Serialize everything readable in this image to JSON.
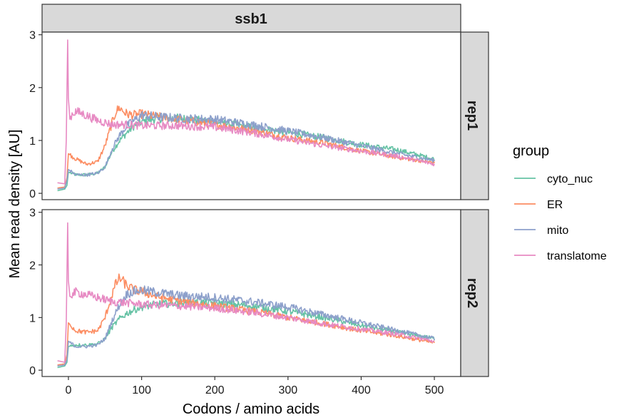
{
  "chart_data": {
    "type": "line",
    "xlabel": "Codons / amino acids",
    "ylabel": "Mean read density [AU]",
    "xlim": [
      -36,
      536
    ],
    "ylim": [
      -0.12,
      3.05
    ],
    "x_ticks": [
      0,
      100,
      200,
      300,
      400,
      500
    ],
    "y_ticks": [
      0,
      1,
      2,
      3
    ],
    "grid": false,
    "legend": {
      "title": "group",
      "position": "right",
      "entries": [
        "cyto_nuc",
        "ER",
        "mito",
        "translatome"
      ]
    },
    "facet_column": "ssb1",
    "facet_rows": [
      "rep1",
      "rep2"
    ],
    "colors": {
      "cyto_nuc": "#66c2a5",
      "ER": "#fc8d62",
      "mito": "#8da0cb",
      "translatome": "#e78ac3"
    },
    "panels": [
      {
        "row": "rep1",
        "series": [
          {
            "name": "cyto_nuc",
            "x": [
              -15,
              -5,
              -2,
              0,
              10,
              25,
              40,
              50,
              60,
              70,
              80,
              90,
              100,
              120,
              150,
              200,
              250,
              300,
              350,
              400,
              450,
              500
            ],
            "y": [
              0.05,
              0.08,
              0.15,
              0.4,
              0.35,
              0.35,
              0.38,
              0.5,
              0.8,
              1.0,
              1.15,
              1.28,
              1.35,
              1.42,
              1.42,
              1.35,
              1.25,
              1.15,
              1.05,
              0.92,
              0.82,
              0.65
            ]
          },
          {
            "name": "ER",
            "x": [
              -15,
              -5,
              -2,
              0,
              10,
              25,
              40,
              50,
              60,
              65,
              70,
              75,
              80,
              90,
              100,
              120,
              150,
              200,
              250,
              300,
              350,
              400,
              450,
              500
            ],
            "y": [
              0.1,
              0.12,
              0.3,
              0.75,
              0.65,
              0.55,
              0.6,
              0.9,
              1.35,
              1.55,
              1.62,
              1.55,
              1.5,
              1.48,
              1.5,
              1.45,
              1.4,
              1.3,
              1.2,
              1.05,
              0.95,
              0.8,
              0.68,
              0.58
            ]
          },
          {
            "name": "mito",
            "x": [
              -15,
              -5,
              -2,
              0,
              10,
              25,
              40,
              50,
              60,
              70,
              80,
              90,
              100,
              120,
              150,
              200,
              250,
              300,
              350,
              400,
              450,
              500
            ],
            "y": [
              0.08,
              0.1,
              0.25,
              0.45,
              0.35,
              0.35,
              0.38,
              0.5,
              0.85,
              1.1,
              1.28,
              1.38,
              1.48,
              1.45,
              1.42,
              1.4,
              1.3,
              1.18,
              1.05,
              0.9,
              0.75,
              0.62
            ]
          },
          {
            "name": "translatome",
            "x": [
              -15,
              -5,
              -3,
              -1,
              0,
              2,
              5,
              10,
              20,
              40,
              60,
              80,
              100,
              150,
              200,
              250,
              300,
              350,
              400,
              450,
              500
            ],
            "y": [
              0.2,
              0.18,
              1.0,
              2.9,
              1.8,
              1.4,
              1.5,
              1.55,
              1.5,
              1.38,
              1.3,
              1.3,
              1.28,
              1.28,
              1.25,
              1.15,
              1.02,
              0.9,
              0.8,
              0.7,
              0.55
            ]
          }
        ]
      },
      {
        "row": "rep2",
        "series": [
          {
            "name": "cyto_nuc",
            "x": [
              -15,
              -5,
              -2,
              0,
              10,
              25,
              40,
              50,
              60,
              70,
              80,
              90,
              100,
              120,
              150,
              200,
              250,
              300,
              350,
              400,
              450,
              500
            ],
            "y": [
              0.05,
              0.08,
              0.15,
              0.45,
              0.48,
              0.48,
              0.5,
              0.6,
              0.82,
              0.98,
              1.08,
              1.15,
              1.2,
              1.25,
              1.28,
              1.28,
              1.22,
              1.12,
              1.0,
              0.85,
              0.72,
              0.6
            ]
          },
          {
            "name": "ER",
            "x": [
              -15,
              -5,
              -2,
              0,
              10,
              25,
              40,
              50,
              60,
              65,
              70,
              75,
              80,
              90,
              100,
              120,
              150,
              200,
              250,
              300,
              350,
              400,
              450,
              500
            ],
            "y": [
              0.1,
              0.12,
              0.3,
              0.9,
              0.75,
              0.72,
              0.75,
              1.0,
              1.45,
              1.65,
              1.75,
              1.68,
              1.6,
              1.52,
              1.5,
              1.4,
              1.32,
              1.22,
              1.12,
              1.0,
              0.88,
              0.75,
              0.65,
              0.52
            ]
          },
          {
            "name": "mito",
            "x": [
              -15,
              -5,
              -2,
              0,
              10,
              25,
              40,
              50,
              60,
              70,
              80,
              90,
              100,
              120,
              150,
              200,
              250,
              300,
              350,
              400,
              450,
              500
            ],
            "y": [
              0.08,
              0.1,
              0.2,
              0.55,
              0.45,
              0.45,
              0.48,
              0.6,
              0.95,
              1.25,
              1.45,
              1.5,
              1.52,
              1.48,
              1.42,
              1.38,
              1.3,
              1.2,
              1.05,
              0.9,
              0.75,
              0.6
            ]
          },
          {
            "name": "translatome",
            "x": [
              -15,
              -5,
              -3,
              -1,
              0,
              2,
              5,
              10,
              20,
              40,
              60,
              80,
              100,
              150,
              200,
              250,
              300,
              350,
              400,
              450,
              500
            ],
            "y": [
              0.18,
              0.15,
              0.9,
              2.8,
              1.7,
              1.4,
              1.45,
              1.48,
              1.45,
              1.38,
              1.3,
              1.28,
              1.25,
              1.22,
              1.18,
              1.1,
              1.0,
              0.88,
              0.78,
              0.68,
              0.55
            ]
          }
        ]
      }
    ]
  }
}
